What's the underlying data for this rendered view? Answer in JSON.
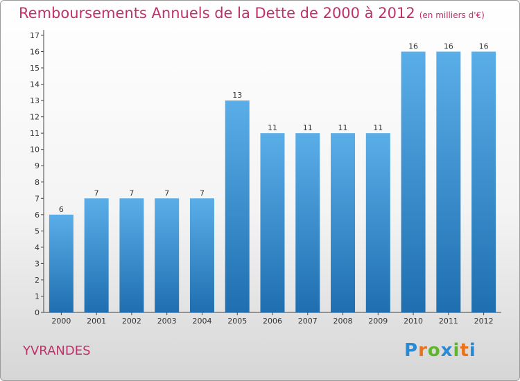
{
  "header": {
    "title": "Remboursements Annuels de la Dette de 2000 à 2012",
    "units": "(en milliers d'€)"
  },
  "footer": {
    "commune": "YVRANDES",
    "logo": "Proxiti",
    "logo_colors": [
      "#2a8ad4",
      "#e8731a",
      "#5fb52c",
      "#2a8ad4",
      "#5fb52c",
      "#e8731a",
      "#2a8ad4"
    ]
  },
  "chart_data": {
    "type": "bar",
    "categories": [
      "2000",
      "2001",
      "2002",
      "2003",
      "2004",
      "2005",
      "2006",
      "2007",
      "2008",
      "2009",
      "2010",
      "2011",
      "2012"
    ],
    "values": [
      6,
      7,
      7,
      7,
      7,
      13,
      11,
      11,
      11,
      11,
      16,
      16,
      16
    ],
    "data_labels": [
      "6",
      "7",
      "7",
      "7",
      "7",
      "13",
      "11",
      "11",
      "11",
      "11",
      "16",
      "16",
      "16"
    ],
    "ylim": [
      0,
      17
    ],
    "yticks": [
      0,
      1,
      2,
      3,
      4,
      5,
      6,
      7,
      8,
      9,
      10,
      11,
      12,
      13,
      14,
      15,
      16,
      17
    ],
    "grid": false,
    "bar_color_top": "#5aaee8",
    "bar_color_bottom": "#1f6fb0",
    "title": "Remboursements Annuels de la Dette de 2000 à 2012"
  }
}
